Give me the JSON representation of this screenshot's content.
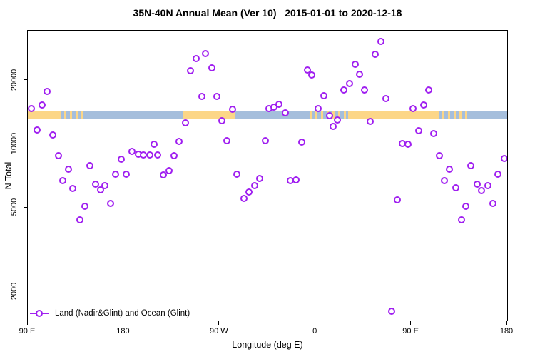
{
  "title": "35N-40N Annual Mean (Ver 10)   2015-01-01 to 2020-12-18",
  "colors": {
    "marker": "#A020F0",
    "land": "#FCD687",
    "ocean": "#A5BEDC",
    "axis": "#000000",
    "background": "#FFFFFF"
  },
  "chart_data": {
    "type": "scatter",
    "title": "35N-40N Annual Mean (Ver 10)   2015-01-01 to 2020-12-18",
    "xlabel": "Longitude (deg E)",
    "ylabel": "N Total",
    "x_axis": {
      "unit": "deg E (wrapping eastward from 90E)",
      "range": [
        90,
        540
      ],
      "tick_values": [
        90,
        180,
        270,
        360,
        450,
        540
      ],
      "tick_labels": [
        "90 E",
        "180",
        "90 W",
        "0",
        "90 E",
        "180"
      ]
    },
    "y_axis": {
      "scale": "log10",
      "range": [
        1400,
        34000
      ],
      "tick_values": [
        20000,
        10000,
        5000,
        2000
      ],
      "tick_labels": [
        "20000",
        "10000",
        "5000",
        "2000"
      ]
    },
    "grid": false,
    "legend": {
      "position": "bottom-left-inside",
      "label": "Land (Nadir&Glint) and Ocean (Glint)",
      "marker": "open-circle-on-line",
      "color": "#A020F0"
    },
    "map_band": {
      "description": "35N-40N latitude strip map: land vs ocean along longitude",
      "value_top": 14250,
      "value_bottom": 13100,
      "land_color": "#FCD687",
      "ocean_color": "#A5BEDC",
      "segments": [
        {
          "from_deg": 90,
          "to_deg": 121,
          "type": "land"
        },
        {
          "from_deg": 121,
          "to_deg": 145,
          "type": "mixed"
        },
        {
          "from_deg": 145,
          "to_deg": 235,
          "type": "ocean"
        },
        {
          "from_deg": 235,
          "to_deg": 285,
          "type": "land"
        },
        {
          "from_deg": 285,
          "to_deg": 351,
          "type": "ocean"
        },
        {
          "from_deg": 351,
          "to_deg": 391,
          "type": "mixed"
        },
        {
          "from_deg": 391,
          "to_deg": 476,
          "type": "land"
        },
        {
          "from_deg": 476,
          "to_deg": 502,
          "type": "mixed"
        },
        {
          "from_deg": 502,
          "to_deg": 540,
          "type": "ocean"
        }
      ]
    },
    "series": [
      {
        "name": "Land (Nadir&Glint) and Ocean (Glint)",
        "color": "#A020F0",
        "marker": "open-circle",
        "points": [
          [
            93.3,
            14800
          ],
          [
            98.7,
            11700
          ],
          [
            103.4,
            15300
          ],
          [
            108.0,
            17800
          ],
          [
            113.4,
            11100
          ],
          [
            118.7,
            8840
          ],
          [
            122.7,
            6750
          ],
          [
            128.1,
            7640
          ],
          [
            132.1,
            6160
          ],
          [
            138.7,
            4390
          ],
          [
            143.4,
            5080
          ],
          [
            148.1,
            7940
          ],
          [
            153.4,
            6450
          ],
          [
            158.1,
            6060
          ],
          [
            162.1,
            6350
          ],
          [
            167.4,
            5240
          ],
          [
            172.1,
            7240
          ],
          [
            177.4,
            8500
          ],
          [
            182.1,
            7240
          ],
          [
            188.1,
            9260
          ],
          [
            193.5,
            8980
          ],
          [
            198.8,
            8910
          ],
          [
            204.2,
            8910
          ],
          [
            208.2,
            10000
          ],
          [
            212.2,
            8910
          ],
          [
            216.9,
            7180
          ],
          [
            222.9,
            7520
          ],
          [
            227.5,
            8840
          ],
          [
            232.2,
            10300
          ],
          [
            238.2,
            12600
          ],
          [
            242.9,
            22300
          ],
          [
            248.2,
            25400
          ],
          [
            253.6,
            16800
          ],
          [
            256.9,
            26800
          ],
          [
            262.9,
            23000
          ],
          [
            267.6,
            16900
          ],
          [
            272.3,
            12900
          ],
          [
            276.9,
            10400
          ],
          [
            282.3,
            14600
          ],
          [
            286.3,
            7240
          ],
          [
            292.9,
            5530
          ],
          [
            297.6,
            5920
          ],
          [
            303.0,
            6350
          ],
          [
            307.6,
            6910
          ],
          [
            313.0,
            10400
          ],
          [
            316.3,
            14700
          ],
          [
            321.0,
            15000
          ],
          [
            325.6,
            15500
          ],
          [
            331.6,
            14100
          ],
          [
            336.3,
            6700
          ],
          [
            341.7,
            6760
          ],
          [
            347.0,
            10200
          ],
          [
            352.3,
            22500
          ],
          [
            356.3,
            21300
          ],
          [
            362.3,
            14700
          ],
          [
            367.7,
            17000
          ],
          [
            373.0,
            13700
          ],
          [
            376.4,
            12100
          ],
          [
            380.4,
            13000
          ],
          [
            386.4,
            18000
          ],
          [
            391.7,
            19400
          ],
          [
            397.1,
            23900
          ],
          [
            401.7,
            21400
          ],
          [
            406.4,
            18000
          ],
          [
            411.7,
            12800
          ],
          [
            416.4,
            26600
          ],
          [
            421.8,
            30600
          ],
          [
            426.4,
            16500
          ],
          [
            431.8,
            1625
          ],
          [
            437.1,
            5440
          ],
          [
            441.8,
            10100
          ],
          [
            447.1,
            10000
          ],
          [
            451.8,
            14700
          ],
          [
            457.1,
            11600
          ],
          [
            461.8,
            15300
          ],
          [
            466.5,
            18000
          ],
          [
            471.2,
            11200
          ],
          [
            476.5,
            8840
          ],
          [
            481.2,
            6700
          ],
          [
            485.9,
            7640
          ],
          [
            491.9,
            6200
          ],
          [
            497.2,
            4390
          ],
          [
            501.2,
            5080
          ],
          [
            505.9,
            7940
          ],
          [
            511.9,
            6450
          ],
          [
            515.9,
            6020
          ],
          [
            521.9,
            6350
          ],
          [
            526.6,
            5240
          ],
          [
            531.2,
            7240
          ],
          [
            537.2,
            8570
          ]
        ]
      }
    ]
  }
}
